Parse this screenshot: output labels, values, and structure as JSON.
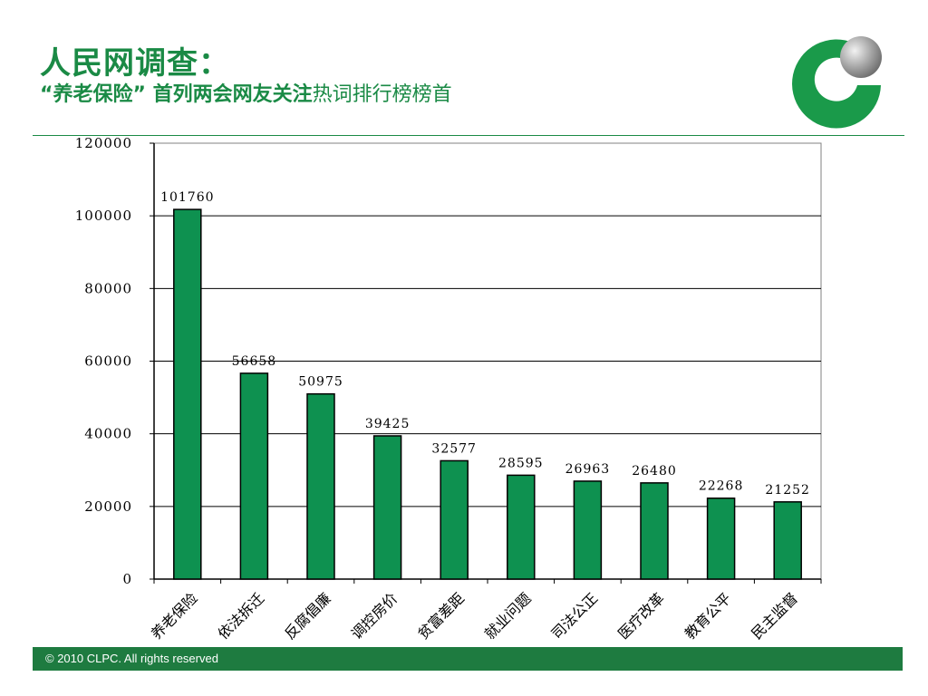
{
  "header": {
    "title": "人民网调查：",
    "subtitle_bold": "“养老保险” 首列两会网友关注",
    "subtitle_normal": "热词排行榜榜首"
  },
  "logo": {
    "icon": "clpc-logo-icon",
    "green": "#1a9a4a",
    "sphere": "#9a9a9a"
  },
  "colors": {
    "accent": "#1a8a45",
    "bar": "#0e9150",
    "footer": "#1e7b40"
  },
  "chart_data": {
    "type": "bar",
    "title": "",
    "xlabel": "",
    "ylabel": "",
    "categories": [
      "养老保险",
      "依法拆迁",
      "反腐倡廉",
      "调控房价",
      "贫富差距",
      "就业问题",
      "司法公正",
      "医疗改革",
      "教育公平",
      "民主监督"
    ],
    "values": [
      101760,
      56658,
      50975,
      39425,
      32577,
      28595,
      26963,
      26480,
      22268,
      21252
    ],
    "ylim": [
      0,
      120000
    ],
    "yticks": [
      0,
      20000,
      40000,
      60000,
      80000,
      100000,
      120000
    ],
    "grid": true,
    "legend": "none"
  },
  "footer": {
    "copyright": "© 2010 CLPC. All rights reserved"
  }
}
